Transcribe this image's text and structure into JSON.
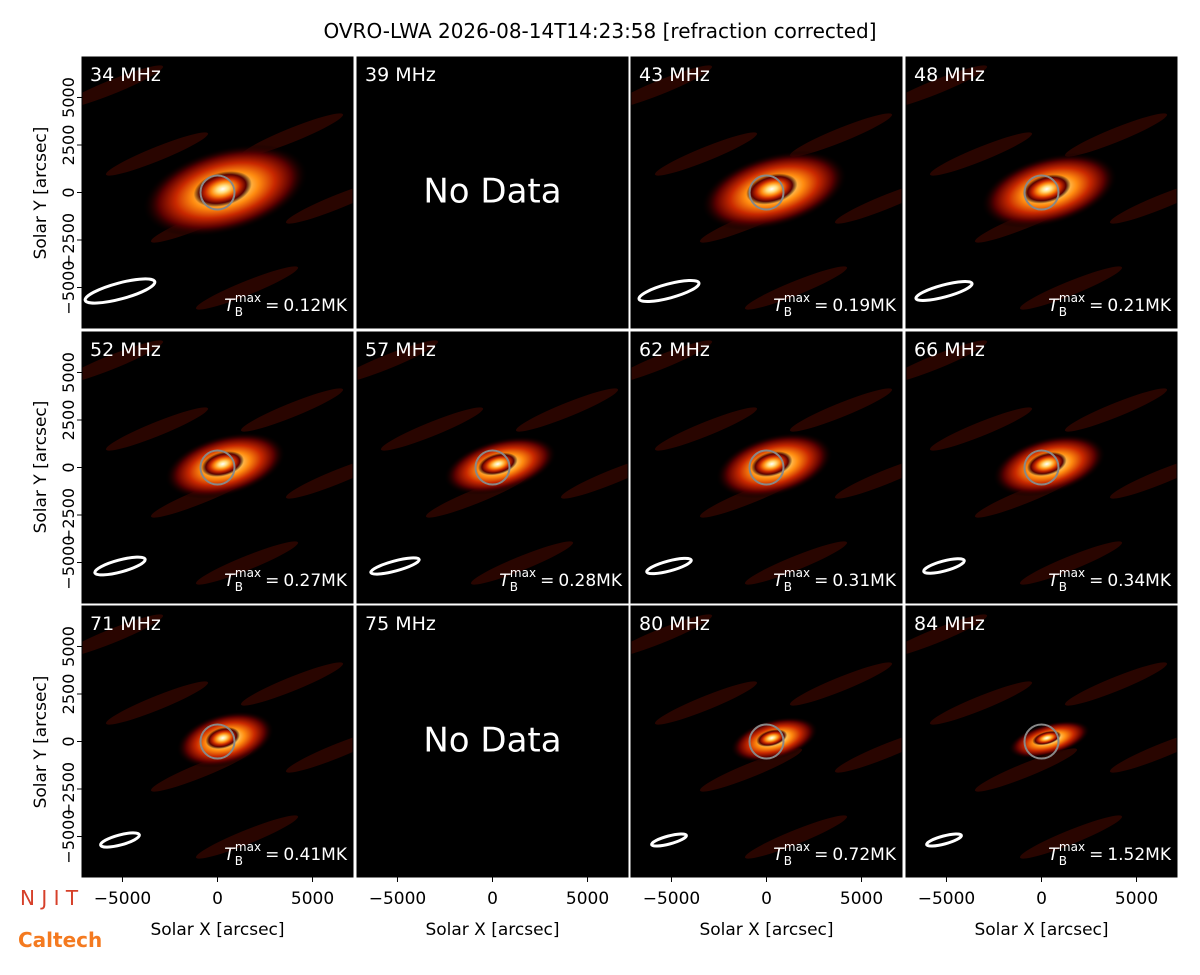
{
  "chart_data": {
    "type": "image-grid",
    "title": "OVRO-LWA 2026-08-14T14:23:58 [refraction corrected]",
    "xlabel": "Solar X [arcsec]",
    "ylabel": "Solar Y [arcsec]",
    "xlim": [
      -7130,
      7130
    ],
    "ylim": [
      -7130,
      7130
    ],
    "xticks": [
      {
        "value": -5000,
        "label": "−5000"
      },
      0,
      5000
    ],
    "yticks": [
      {
        "value": -5000,
        "label": "−5000"
      },
      {
        "value": -2500,
        "label": "−2500"
      },
      0,
      2500,
      5000
    ],
    "colormap": [
      "#000000",
      "#5a0000",
      "#c82800",
      "#ff8c10",
      "#ffe080",
      "#ffffff"
    ],
    "tb_symbol": {
      "base": "T",
      "sub": "B",
      "sup": "max",
      "eq": "="
    },
    "panels": [
      {
        "frequency": "34 MHz",
        "tb_max": "0.12MK"
      },
      {
        "frequency": "39 MHz",
        "no_data": "No Data"
      },
      {
        "frequency": "43 MHz",
        "tb_max": "0.19MK"
      },
      {
        "frequency": "48 MHz",
        "tb_max": "0.21MK"
      },
      {
        "frequency": "52 MHz",
        "tb_max": "0.27MK"
      },
      {
        "frequency": "57 MHz",
        "tb_max": "0.28MK"
      },
      {
        "frequency": "62 MHz",
        "tb_max": "0.31MK"
      },
      {
        "frequency": "66 MHz",
        "tb_max": "0.34MK"
      },
      {
        "frequency": "71 MHz",
        "tb_max": "0.41MK"
      },
      {
        "frequency": "75 MHz",
        "no_data": "No Data"
      },
      {
        "frequency": "80 MHz",
        "tb_max": "0.72MK"
      },
      {
        "frequency": "84 MHz",
        "tb_max": "1.52MK"
      }
    ]
  },
  "logos": {
    "njit": "N J I T",
    "caltech": "Caltech"
  }
}
